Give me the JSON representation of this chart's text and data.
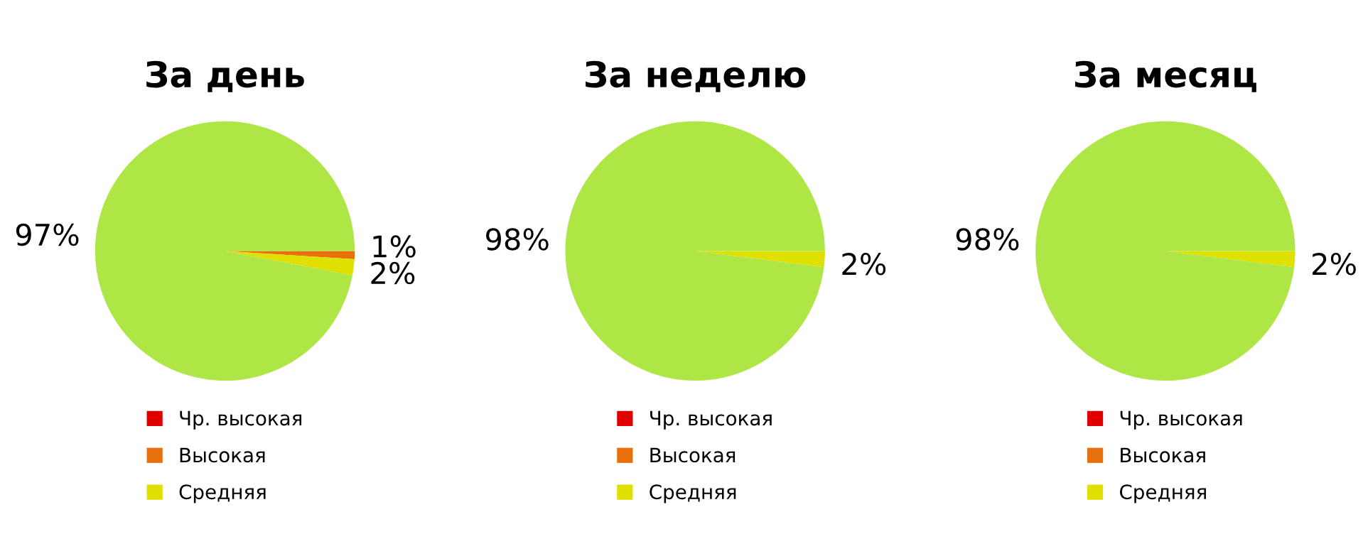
{
  "chart_data": [
    {
      "type": "pie",
      "title": "За день",
      "categories": [
        "Чр. высокая",
        "Высокая",
        "Средняя",
        null
      ],
      "values": [
        0,
        1,
        2,
        97
      ],
      "value_labels": [
        null,
        "1%",
        "2%",
        "97%"
      ],
      "colors": [
        "#e00000",
        "#e8700c",
        "#e0e000",
        "#aee645"
      ],
      "legend": "bottom"
    },
    {
      "type": "pie",
      "title": "За неделю",
      "categories": [
        "Чр. высокая",
        "Высокая",
        "Средняя",
        null
      ],
      "values": [
        0,
        0,
        2,
        98
      ],
      "value_labels": [
        null,
        null,
        "2%",
        "98%"
      ],
      "colors": [
        "#e00000",
        "#e8700c",
        "#e0e000",
        "#aee645"
      ],
      "legend": "bottom"
    },
    {
      "type": "pie",
      "title": "За месяц",
      "categories": [
        "Чр. высокая",
        "Высокая",
        "Средняя",
        null
      ],
      "values": [
        0,
        0,
        2,
        98
      ],
      "value_labels": [
        null,
        null,
        "2%",
        "98%"
      ],
      "colors": [
        "#e00000",
        "#e8700c",
        "#e0e000",
        "#aee645"
      ],
      "legend": "bottom"
    }
  ]
}
